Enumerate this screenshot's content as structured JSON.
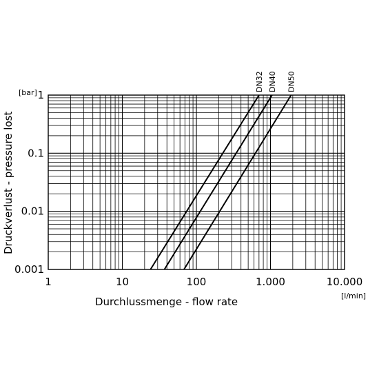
{
  "chart_data": {
    "type": "line",
    "title": "",
    "xscale": "log",
    "yscale": "log",
    "xlim": [
      1,
      10000
    ],
    "ylim": [
      0.001,
      1
    ],
    "x_ticks": [
      {
        "value": 1,
        "label": "1"
      },
      {
        "value": 10,
        "label": "10"
      },
      {
        "value": 100,
        "label": "100"
      },
      {
        "value": 1000,
        "label": "1.000"
      },
      {
        "value": 10000,
        "label": "10.000"
      }
    ],
    "y_ticks": [
      {
        "value": 0.001,
        "label": "0.001"
      },
      {
        "value": 0.01,
        "label": "0.01"
      },
      {
        "value": 0.1,
        "label": "0.1"
      },
      {
        "value": 1,
        "label": "1"
      }
    ],
    "xlabel": "Durchlussmenge - flow rate",
    "xunit": "[l/min]",
    "ylabel": "Druckverlust - pressure lost",
    "yunit": "[bar]",
    "grid": true,
    "series": [
      {
        "name": "DN32",
        "points": [
          [
            24,
            0.001
          ],
          [
            700,
            1
          ]
        ]
      },
      {
        "name": "DN40",
        "points": [
          [
            37,
            0.001
          ],
          [
            1050,
            1
          ]
        ]
      },
      {
        "name": "DN50",
        "points": [
          [
            68,
            0.001
          ],
          [
            1900,
            1
          ]
        ]
      }
    ]
  }
}
